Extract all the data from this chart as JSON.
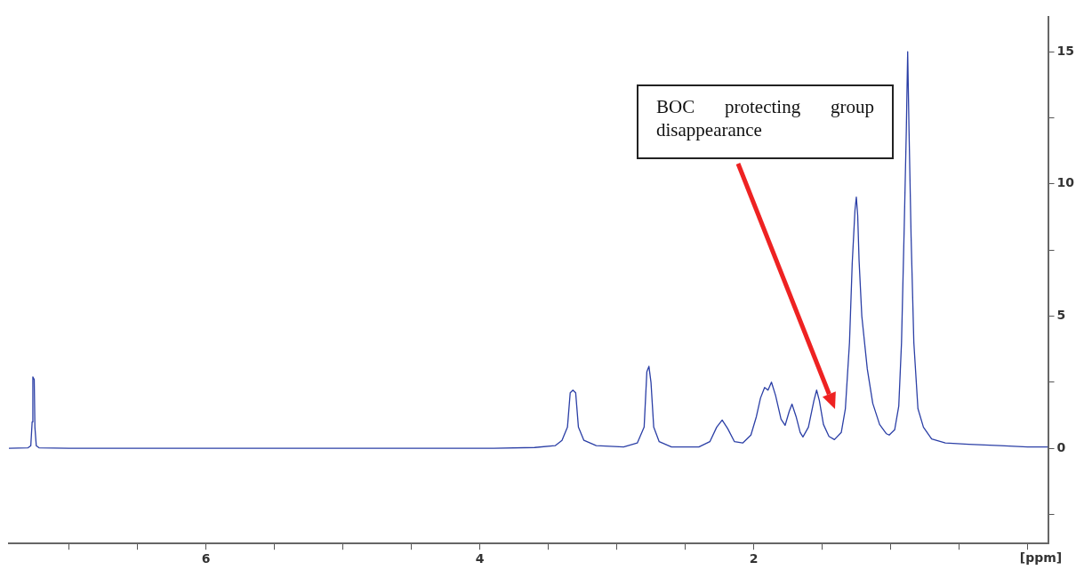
{
  "chart_data": {
    "type": "line",
    "xlabel": "[ppm]",
    "xlim": [
      7.44,
      -0.15
    ],
    "xticks": [
      {
        "value": 7,
        "label": null
      },
      {
        "value": 6.5,
        "label": null
      },
      6,
      {
        "value": 5.5,
        "label": null
      },
      {
        "value": 5,
        "label": null
      },
      {
        "value": 4.5,
        "label": null
      },
      4,
      {
        "value": 3.5,
        "label": null
      },
      {
        "value": 3,
        "label": null
      },
      {
        "value": 2.5,
        "label": null
      },
      2,
      {
        "value": 1.5,
        "label": null
      },
      {
        "value": 1,
        "label": null
      },
      {
        "value": 0.5,
        "label": null
      },
      {
        "value": 0,
        "label": null
      }
    ],
    "ylim": [
      -3.6,
      16.3
    ],
    "yticks": [
      {
        "value": -2.5,
        "label": null
      },
      0,
      {
        "value": 2.5,
        "label": null
      },
      5,
      {
        "value": 7.5,
        "label": null
      },
      10,
      {
        "value": 12.5,
        "label": null
      },
      15
    ],
    "grid": false,
    "legend": false,
    "marker": "none",
    "line_style": "solid",
    "annotations": [
      "BOC protecting group disappearance"
    ],
    "series": [
      {
        "color": "#2b3fa6",
        "x": [
          7.44,
          7.3,
          7.28,
          7.27,
          7.265,
          7.255,
          7.25,
          7.24,
          7.22,
          7.0,
          5.0,
          3.9,
          3.6,
          3.45,
          3.4,
          3.36,
          3.34,
          3.32,
          3.3,
          3.28,
          3.24,
          3.15,
          2.95,
          2.85,
          2.8,
          2.78,
          2.765,
          2.75,
          2.73,
          2.69,
          2.6,
          2.4,
          2.32,
          2.27,
          2.23,
          2.19,
          2.14,
          2.08,
          2.02,
          1.98,
          1.95,
          1.92,
          1.895,
          1.87,
          1.84,
          1.8,
          1.77,
          1.74,
          1.72,
          1.69,
          1.66,
          1.64,
          1.6,
          1.56,
          1.54,
          1.52,
          1.49,
          1.45,
          1.41,
          1.36,
          1.33,
          1.3,
          1.28,
          1.26,
          1.25,
          1.24,
          1.23,
          1.21,
          1.17,
          1.13,
          1.08,
          1.03,
          1.01,
          0.97,
          0.94,
          0.92,
          0.9,
          0.885,
          0.875,
          0.865,
          0.85,
          0.83,
          0.8,
          0.76,
          0.7,
          0.6,
          0.43,
          0.2,
          0,
          -0.15
        ],
        "values": [
          0,
          0.02,
          0.1,
          1.0,
          2.7,
          2.6,
          0.8,
          0.1,
          0.02,
          0,
          0,
          0,
          0.03,
          0.1,
          0.3,
          0.8,
          2.1,
          2.2,
          2.1,
          0.8,
          0.3,
          0.1,
          0.05,
          0.2,
          0.8,
          2.9,
          3.1,
          2.5,
          0.8,
          0.25,
          0.05,
          0.05,
          0.25,
          0.8,
          1.07,
          0.75,
          0.25,
          0.2,
          0.5,
          1.2,
          1.9,
          2.3,
          2.2,
          2.5,
          2.0,
          1.1,
          0.87,
          1.4,
          1.67,
          1.2,
          0.6,
          0.43,
          0.8,
          1.8,
          2.2,
          1.8,
          0.9,
          0.45,
          0.33,
          0.6,
          1.5,
          4.0,
          7.0,
          9.0,
          9.5,
          8.8,
          7.1,
          5.0,
          3.0,
          1.7,
          0.9,
          0.55,
          0.5,
          0.7,
          1.6,
          4.0,
          8.4,
          12.0,
          15.0,
          12.0,
          8.0,
          4.0,
          1.5,
          0.8,
          0.35,
          0.2,
          0.15,
          0.1,
          0.05,
          0.05
        ]
      }
    ]
  }
}
